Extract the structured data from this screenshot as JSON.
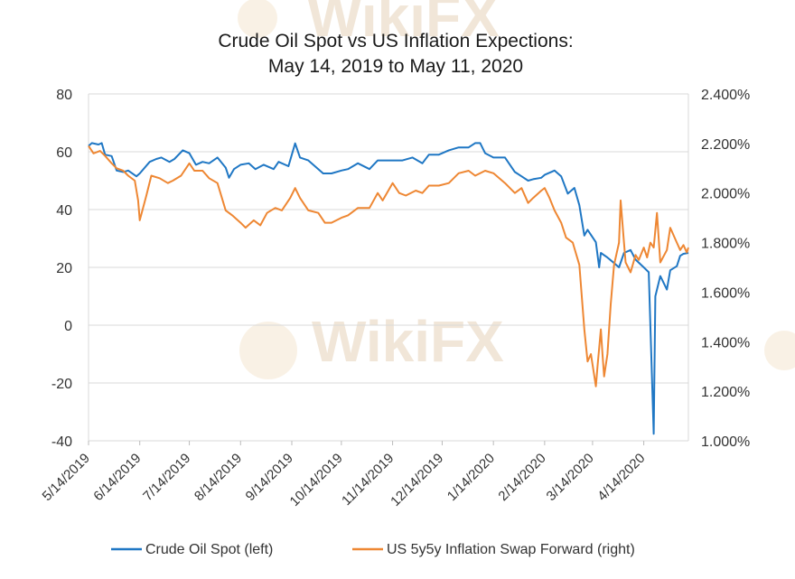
{
  "chart_data": {
    "type": "line",
    "title_line1": "Crude Oil Spot vs US Inflation Expections:",
    "title_line2": "May 14, 2019 to May 11, 2020",
    "watermark": "WikiFX",
    "x_start": "2019-05-14",
    "x_end": "2020-05-11",
    "x_tick_labels": [
      "5/14/2019",
      "6/14/2019",
      "7/14/2019",
      "8/14/2019",
      "9/14/2019",
      "10/14/2019",
      "11/14/2019",
      "12/14/2019",
      "1/14/2020",
      "2/14/2020",
      "3/14/2020",
      "4/14/2020"
    ],
    "x_tick_dates": [
      "2019-05-14",
      "2019-06-14",
      "2019-07-14",
      "2019-08-14",
      "2019-09-14",
      "2019-10-14",
      "2019-11-14",
      "2019-12-14",
      "2020-01-14",
      "2020-02-14",
      "2020-03-14",
      "2020-04-14"
    ],
    "y_left": {
      "min": -40,
      "max": 80,
      "step": 20,
      "tick_labels": [
        "-40",
        "-20",
        "0",
        "20",
        "40",
        "60",
        "80"
      ]
    },
    "y_right": {
      "min": 1.0,
      "max": 2.4,
      "step": 0.2,
      "tick_labels": [
        "1.000%",
        "1.200%",
        "1.400%",
        "1.600%",
        "1.800%",
        "2.000%",
        "2.200%",
        "2.400%"
      ]
    },
    "grid": "horizontal",
    "legend_position": "bottom",
    "series": [
      {
        "name": "Crude Oil Spot (left)",
        "color": "#1f77c4",
        "axis": "left",
        "points": [
          [
            "2019-05-14",
            62
          ],
          [
            "2019-05-16",
            63
          ],
          [
            "2019-05-20",
            62.5
          ],
          [
            "2019-05-22",
            63
          ],
          [
            "2019-05-24",
            59
          ],
          [
            "2019-05-28",
            58.5
          ],
          [
            "2019-05-31",
            53.5
          ],
          [
            "2019-06-04",
            53
          ],
          [
            "2019-06-07",
            53.5
          ],
          [
            "2019-06-12",
            51.5
          ],
          [
            "2019-06-14",
            52.5
          ],
          [
            "2019-06-20",
            56.5
          ],
          [
            "2019-06-24",
            57.5
          ],
          [
            "2019-06-27",
            58
          ],
          [
            "2019-07-02",
            56.5
          ],
          [
            "2019-07-05",
            57.5
          ],
          [
            "2019-07-10",
            60.5
          ],
          [
            "2019-07-14",
            59.5
          ],
          [
            "2019-07-18",
            55.5
          ],
          [
            "2019-07-22",
            56.5
          ],
          [
            "2019-07-26",
            56
          ],
          [
            "2019-07-31",
            58
          ],
          [
            "2019-08-05",
            54.5
          ],
          [
            "2019-08-07",
            51
          ],
          [
            "2019-08-10",
            54
          ],
          [
            "2019-08-14",
            55.5
          ],
          [
            "2019-08-19",
            56
          ],
          [
            "2019-08-23",
            54
          ],
          [
            "2019-08-28",
            55.5
          ],
          [
            "2019-09-03",
            54
          ],
          [
            "2019-09-06",
            56.5
          ],
          [
            "2019-09-12",
            55
          ],
          [
            "2019-09-16",
            62.9
          ],
          [
            "2019-09-19",
            58
          ],
          [
            "2019-09-24",
            57
          ],
          [
            "2019-09-30",
            54
          ],
          [
            "2019-10-03",
            52.5
          ],
          [
            "2019-10-08",
            52.5
          ],
          [
            "2019-10-14",
            53.5
          ],
          [
            "2019-10-18",
            54
          ],
          [
            "2019-10-24",
            56
          ],
          [
            "2019-10-31",
            54
          ],
          [
            "2019-11-05",
            57
          ],
          [
            "2019-11-08",
            57
          ],
          [
            "2019-11-14",
            57
          ],
          [
            "2019-11-20",
            57
          ],
          [
            "2019-11-26",
            58
          ],
          [
            "2019-12-02",
            56
          ],
          [
            "2019-12-06",
            59
          ],
          [
            "2019-12-12",
            59
          ],
          [
            "2019-12-18",
            60.5
          ],
          [
            "2019-12-24",
            61.5
          ],
          [
            "2019-12-30",
            61.5
          ],
          [
            "2020-01-03",
            63
          ],
          [
            "2020-01-06",
            63
          ],
          [
            "2020-01-09",
            59.5
          ],
          [
            "2020-01-14",
            58
          ],
          [
            "2020-01-21",
            58
          ],
          [
            "2020-01-27",
            53
          ],
          [
            "2020-01-31",
            51.5
          ],
          [
            "2020-02-04",
            50
          ],
          [
            "2020-02-07",
            50.5
          ],
          [
            "2020-02-12",
            51
          ],
          [
            "2020-02-14",
            52
          ],
          [
            "2020-02-20",
            53.5
          ],
          [
            "2020-02-24",
            51.5
          ],
          [
            "2020-02-28",
            45.5
          ],
          [
            "2020-03-03",
            47.5
          ],
          [
            "2020-03-06",
            41.5
          ],
          [
            "2020-03-09",
            31
          ],
          [
            "2020-03-11",
            33
          ],
          [
            "2020-03-16",
            28.7
          ],
          [
            "2020-03-18",
            20
          ],
          [
            "2020-03-19",
            25
          ],
          [
            "2020-03-23",
            23.4
          ],
          [
            "2020-03-27",
            21.5
          ],
          [
            "2020-03-30",
            20
          ],
          [
            "2020-04-02",
            25
          ],
          [
            "2020-04-06",
            26
          ],
          [
            "2020-04-09",
            22.7
          ],
          [
            "2020-04-14",
            20
          ],
          [
            "2020-04-17",
            18.3
          ],
          [
            "2020-04-20",
            -37.6
          ],
          [
            "2020-04-21",
            10
          ],
          [
            "2020-04-24",
            17
          ],
          [
            "2020-04-28",
            12.3
          ],
          [
            "2020-04-30",
            19
          ],
          [
            "2020-05-04",
            20.4
          ],
          [
            "2020-05-06",
            24
          ],
          [
            "2020-05-08",
            24.7
          ],
          [
            "2020-05-11",
            25
          ]
        ]
      },
      {
        "name": "US 5y5y Inflation Swap Forward (right)",
        "color": "#ee8733",
        "axis": "right",
        "points": [
          [
            "2019-05-14",
            2.19
          ],
          [
            "2019-05-17",
            2.16
          ],
          [
            "2019-05-21",
            2.17
          ],
          [
            "2019-05-24",
            2.15
          ],
          [
            "2019-05-28",
            2.12
          ],
          [
            "2019-05-31",
            2.1
          ],
          [
            "2019-06-04",
            2.09
          ],
          [
            "2019-06-07",
            2.07
          ],
          [
            "2019-06-11",
            2.05
          ],
          [
            "2019-06-13",
            1.97
          ],
          [
            "2019-06-14",
            1.89
          ],
          [
            "2019-06-18",
            1.99
          ],
          [
            "2019-06-21",
            2.07
          ],
          [
            "2019-06-26",
            2.06
          ],
          [
            "2019-07-01",
            2.04
          ],
          [
            "2019-07-04",
            2.05
          ],
          [
            "2019-07-09",
            2.07
          ],
          [
            "2019-07-14",
            2.12
          ],
          [
            "2019-07-17",
            2.09
          ],
          [
            "2019-07-22",
            2.09
          ],
          [
            "2019-07-26",
            2.06
          ],
          [
            "2019-07-31",
            2.04
          ],
          [
            "2019-08-05",
            1.93
          ],
          [
            "2019-08-09",
            1.91
          ],
          [
            "2019-08-14",
            1.88
          ],
          [
            "2019-08-17",
            1.86
          ],
          [
            "2019-08-22",
            1.89
          ],
          [
            "2019-08-26",
            1.87
          ],
          [
            "2019-08-30",
            1.92
          ],
          [
            "2019-09-04",
            1.94
          ],
          [
            "2019-09-08",
            1.93
          ],
          [
            "2019-09-13",
            1.98
          ],
          [
            "2019-09-16",
            2.02
          ],
          [
            "2019-09-19",
            1.98
          ],
          [
            "2019-09-24",
            1.93
          ],
          [
            "2019-09-30",
            1.92
          ],
          [
            "2019-10-04",
            1.88
          ],
          [
            "2019-10-08",
            1.88
          ],
          [
            "2019-10-14",
            1.9
          ],
          [
            "2019-10-18",
            1.91
          ],
          [
            "2019-10-24",
            1.94
          ],
          [
            "2019-10-31",
            1.94
          ],
          [
            "2019-11-05",
            2.0
          ],
          [
            "2019-11-08",
            1.97
          ],
          [
            "2019-11-14",
            2.04
          ],
          [
            "2019-11-18",
            2.0
          ],
          [
            "2019-11-22",
            1.99
          ],
          [
            "2019-11-28",
            2.01
          ],
          [
            "2019-12-02",
            2.0
          ],
          [
            "2019-12-06",
            2.03
          ],
          [
            "2019-12-12",
            2.03
          ],
          [
            "2019-12-18",
            2.04
          ],
          [
            "2019-12-24",
            2.08
          ],
          [
            "2019-12-30",
            2.09
          ],
          [
            "2020-01-03",
            2.07
          ],
          [
            "2020-01-09",
            2.09
          ],
          [
            "2020-01-14",
            2.08
          ],
          [
            "2020-01-21",
            2.04
          ],
          [
            "2020-01-27",
            2.0
          ],
          [
            "2020-01-31",
            2.02
          ],
          [
            "2020-02-04",
            1.96
          ],
          [
            "2020-02-07",
            1.98
          ],
          [
            "2020-02-12",
            2.01
          ],
          [
            "2020-02-14",
            2.02
          ],
          [
            "2020-02-17",
            1.98
          ],
          [
            "2020-02-20",
            1.93
          ],
          [
            "2020-02-24",
            1.88
          ],
          [
            "2020-02-27",
            1.82
          ],
          [
            "2020-03-02",
            1.8
          ],
          [
            "2020-03-06",
            1.71
          ],
          [
            "2020-03-09",
            1.45
          ],
          [
            "2020-03-11",
            1.32
          ],
          [
            "2020-03-13",
            1.35
          ],
          [
            "2020-03-16",
            1.22
          ],
          [
            "2020-03-17",
            1.3
          ],
          [
            "2020-03-19",
            1.45
          ],
          [
            "2020-03-20",
            1.35
          ],
          [
            "2020-03-21",
            1.26
          ],
          [
            "2020-03-23",
            1.35
          ],
          [
            "2020-03-25",
            1.55
          ],
          [
            "2020-03-27",
            1.71
          ],
          [
            "2020-03-30",
            1.8
          ],
          [
            "2020-03-31",
            1.97
          ],
          [
            "2020-04-02",
            1.8
          ],
          [
            "2020-04-03",
            1.72
          ],
          [
            "2020-04-06",
            1.68
          ],
          [
            "2020-04-09",
            1.75
          ],
          [
            "2020-04-11",
            1.73
          ],
          [
            "2020-04-14",
            1.78
          ],
          [
            "2020-04-16",
            1.74
          ],
          [
            "2020-04-18",
            1.8
          ],
          [
            "2020-04-20",
            1.78
          ],
          [
            "2020-04-22",
            1.92
          ],
          [
            "2020-04-24",
            1.72
          ],
          [
            "2020-04-28",
            1.77
          ],
          [
            "2020-04-30",
            1.86
          ],
          [
            "2020-05-04",
            1.8
          ],
          [
            "2020-05-06",
            1.77
          ],
          [
            "2020-05-08",
            1.79
          ],
          [
            "2020-05-10",
            1.76
          ],
          [
            "2020-05-11",
            1.78
          ]
        ]
      }
    ]
  }
}
